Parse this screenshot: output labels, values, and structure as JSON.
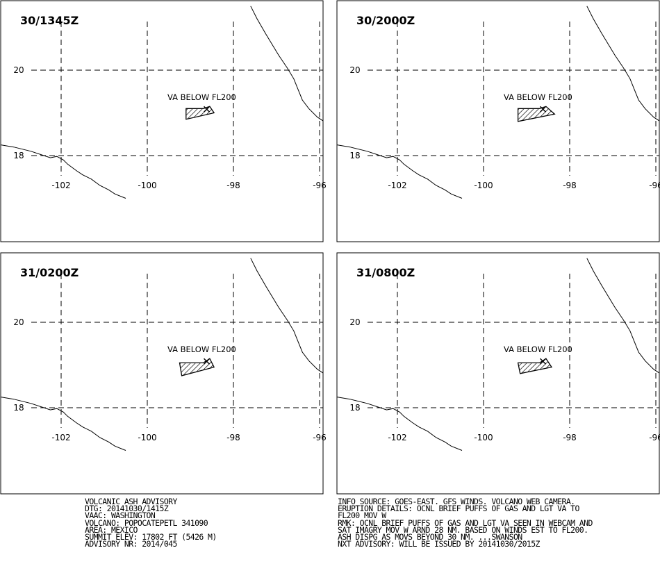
{
  "panels": [
    {
      "title": "30/1345Z",
      "label": "VA BELOW FL200",
      "polygon": [
        [
          -99.1,
          19.1
        ],
        [
          -98.7,
          19.1
        ],
        [
          -98.55,
          19.15
        ],
        [
          -98.45,
          19.0
        ],
        [
          -99.1,
          18.85
        ]
      ]
    },
    {
      "title": "30/2000Z",
      "label": "VA BELOW FL200",
      "polygon": [
        [
          -99.2,
          19.1
        ],
        [
          -98.7,
          19.1
        ],
        [
          -98.55,
          19.15
        ],
        [
          -98.35,
          18.97
        ],
        [
          -99.2,
          18.8
        ]
      ]
    },
    {
      "title": "31/0200Z",
      "label": "VA BELOW FL200",
      "polygon": [
        [
          -99.25,
          19.05
        ],
        [
          -98.7,
          19.05
        ],
        [
          -98.55,
          19.15
        ],
        [
          -98.45,
          18.95
        ],
        [
          -99.2,
          18.75
        ]
      ]
    },
    {
      "title": "31/0800Z",
      "label": "VA BELOW FL200",
      "polygon": [
        [
          -99.2,
          19.05
        ],
        [
          -98.7,
          19.05
        ],
        [
          -98.55,
          19.15
        ],
        [
          -98.42,
          18.95
        ],
        [
          -99.15,
          18.8
        ]
      ]
    }
  ],
  "axes": {
    "lon_ticks": [
      -102,
      -100,
      -98,
      -96
    ],
    "lat_ticks": [
      20,
      18
    ],
    "lon_labels": [
      "-102",
      "-100",
      "-98",
      "-96"
    ],
    "lat_labels": [
      "20",
      "18"
    ]
  },
  "volcano": {
    "lon": -98.62,
    "lat": 19.02
  },
  "advisory_left": [
    "VOLCANIC ASH ADVISORY",
    "DTG: 20141030/1415Z",
    "VAAC: WASHINGTON",
    "VOLCANO: POPOCATEPETL 341090",
    "AREA: MEXICO",
    "SUMMIT ELEV: 17802 FT (5426 M)",
    "ADVISORY NR: 2014/045"
  ],
  "advisory_right": [
    "INFO SOURCE: GOES-EAST. GFS WINDS. VOLCANO WEB CAMERA.",
    "ERUPTION DETAILS: OCNL BRIEF PUFFS OF GAS AND LGT VA TO",
    "FL200 MOV W",
    "RMK: OCNL BRIEF PUFFS OF GAS AND LGT VA SEEN IN WEBCAM AND",
    "SAT IMAGRY MOV W ARND 28 NM. BASED ON WINDS EST TO FL200.",
    "ASH DISPG AS MOVS BEYOND 30 NM. ...SWANSON",
    "NXT ADVISORY: WILL BE ISSUED BY 20141030/2015Z"
  ]
}
